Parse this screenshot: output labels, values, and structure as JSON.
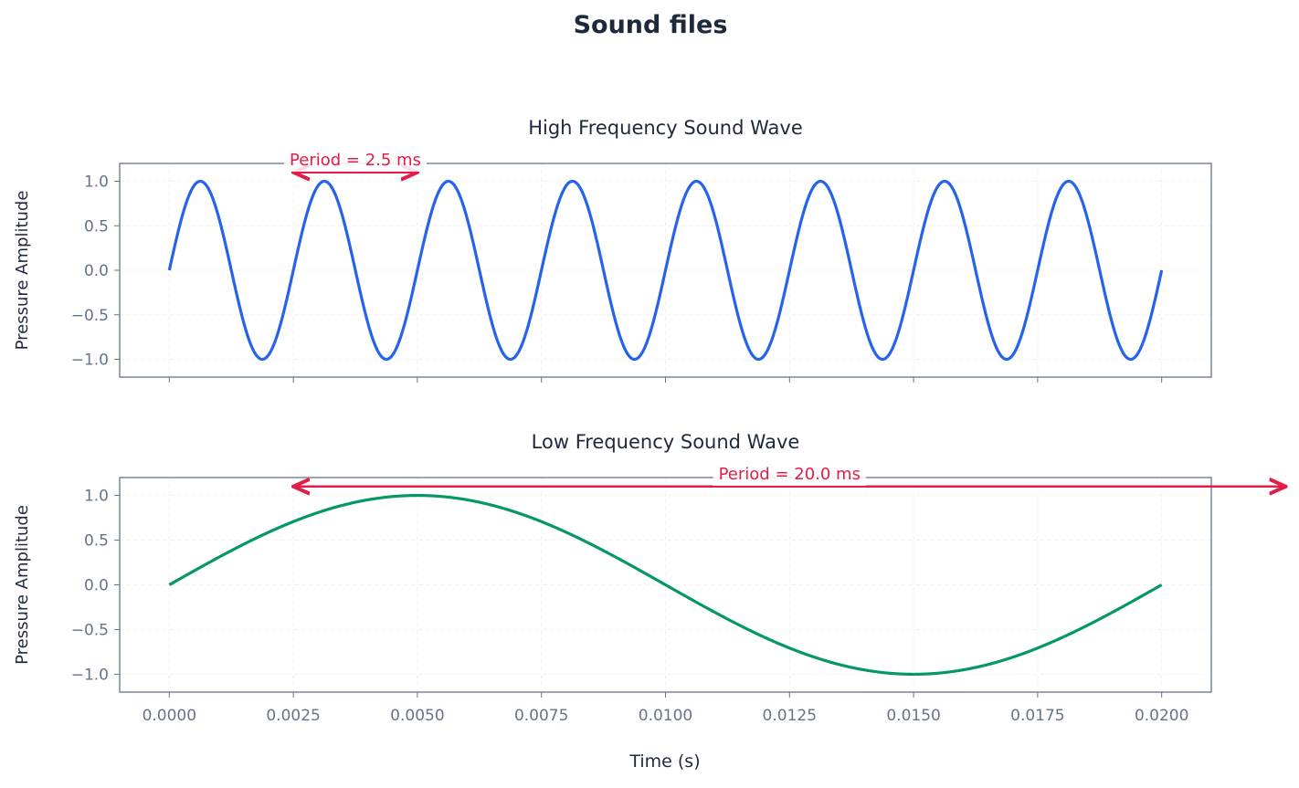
{
  "chart_data": {
    "title": "Sound files",
    "xlabel": "Time (s)",
    "shared_x": true,
    "xlim": [
      -0.001,
      0.021
    ],
    "xticks": [
      "0.0000",
      "0.0025",
      "0.0050",
      "0.0075",
      "0.0100",
      "0.0125",
      "0.0150",
      "0.0175",
      "0.0200"
    ],
    "grid": true,
    "colors": {
      "text": "#1e293b",
      "tick": "#64748b",
      "axis": "#64748b",
      "annotation": "#e11d48"
    },
    "panels": [
      {
        "type": "line",
        "title": "High Frequency Sound Wave",
        "ylabel": "Pressure Amplitude",
        "ylim": [
          -1.2,
          1.2
        ],
        "yticks": [
          "1.0",
          "0.5",
          "0.0",
          "−0.5",
          "−1.0"
        ],
        "function": "sin",
        "frequency_hz": 400,
        "amplitude": 1.0,
        "x_range": [
          0,
          0.02
        ],
        "color": "#2563eb",
        "annotation": {
          "text": "Period = 2.5 ms",
          "arrow_from": [
            0.0025,
            1.1
          ],
          "arrow_to": [
            0.005,
            1.1
          ],
          "label_at": [
            0.00375,
            1.2
          ]
        }
      },
      {
        "type": "line",
        "title": "Low Frequency Sound Wave",
        "ylabel": "Pressure Amplitude",
        "ylim": [
          -1.2,
          1.2
        ],
        "yticks": [
          "1.0",
          "0.5",
          "0.0",
          "−0.5",
          "−1.0"
        ],
        "function": "sin",
        "frequency_hz": 50,
        "amplitude": 1.0,
        "x_range": [
          0,
          0.02
        ],
        "color": "#059669",
        "annotation": {
          "text": "Period = 20.0 ms",
          "arrow_from": [
            0.0025,
            1.1
          ],
          "arrow_to": [
            0.0225,
            1.1
          ],
          "label_at": [
            0.0125,
            1.2
          ]
        }
      }
    ]
  }
}
